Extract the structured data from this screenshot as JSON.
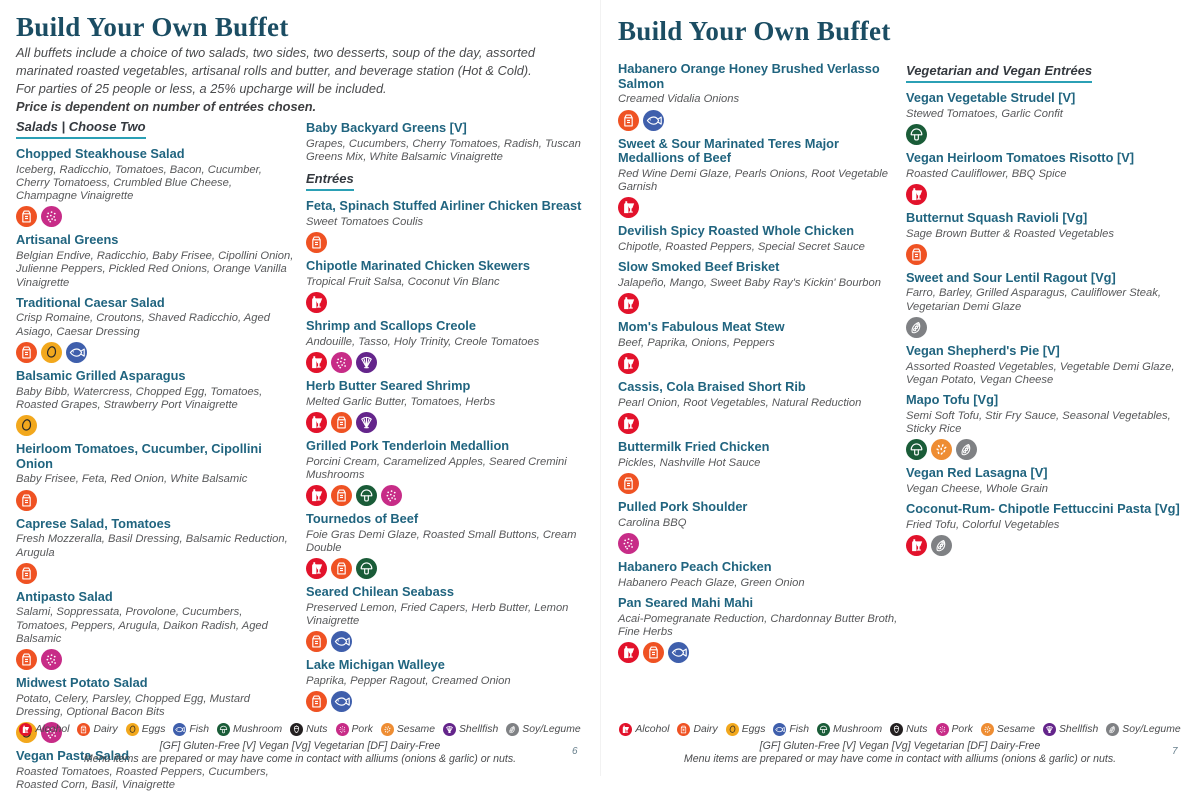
{
  "legend": {
    "items": [
      {
        "id": "alcohol",
        "label": "Alcohol",
        "color": "#e2122b"
      },
      {
        "id": "dairy",
        "label": "Dairy",
        "color": "#ef5223"
      },
      {
        "id": "eggs",
        "label": "Eggs",
        "color": "#f2a81d"
      },
      {
        "id": "fish",
        "label": "Fish",
        "color": "#3f5fac"
      },
      {
        "id": "mushroom",
        "label": "Mushroom",
        "color": "#1a5c38"
      },
      {
        "id": "nuts",
        "label": "Nuts",
        "color": "#242021"
      },
      {
        "id": "pork",
        "label": "Pork",
        "color": "#c72c87"
      },
      {
        "id": "sesame",
        "label": "Sesame",
        "color": "#ee8d33"
      },
      {
        "id": "shellfish",
        "label": "Shellfish",
        "color": "#64258b"
      },
      {
        "id": "soy",
        "label": "Soy/Legume",
        "color": "#7f8184"
      }
    ]
  },
  "footer": {
    "abbreviations": "[GF] Gluten-Free [V] Vegan [Vg] Vegetarian [DF] Dairy-Free",
    "disclaimer": "Menu items are prepared or may have come in contact with alliums (onions & garlic) or nuts."
  },
  "pages": [
    {
      "title": "Build Your Own Buffet",
      "page_number": "6",
      "intro": [
        "All buffets include a choice of two salads, two sides, two desserts, soup of the day, assorted marinated roasted vegetables, artisanal rolls and butter, and beverage station (Hot & Cold).",
        "For parties of 25 people or less, a 25% upcharge will be included.",
        "Price is dependent on number of entrées chosen."
      ],
      "columns": [
        {
          "blocks": [
            {
              "type": "header",
              "text": "Salads | Choose Two"
            },
            {
              "type": "item",
              "name": "Chopped Steakhouse Salad",
              "desc": "Iceberg, Radicchio, Tomatoes, Bacon, Cucumber, Cherry Tomatoess, Crumbled Blue Cheese, Champagne Vinaigrette",
              "allergens": [
                "dairy",
                "pork"
              ]
            },
            {
              "type": "item",
              "name": "Artisanal Greens",
              "desc": "Belgian Endive, Radicchio, Baby Frisee, Cipollini Onion, Julienne Peppers, Pickled Red Onions, Orange Vanilla Vinaigrette",
              "allergens": []
            },
            {
              "type": "item",
              "name": "Traditional Caesar Salad",
              "desc": "Crisp Romaine, Croutons, Shaved Radicchio, Aged Asiago, Caesar Dressing",
              "allergens": [
                "dairy",
                "eggs",
                "fish"
              ]
            },
            {
              "type": "item",
              "name": "Balsamic Grilled Asparagus",
              "desc": "Baby Bibb, Watercress, Chopped Egg, Tomatoes, Roasted Grapes, Strawberry Port Vinaigrette",
              "allergens": [
                "eggs"
              ]
            },
            {
              "type": "item",
              "name": "Heirloom Tomatoes, Cucumber, Cipollini Onion",
              "desc": "Baby Frisee, Feta, Red Onion, White Balsamic",
              "allergens": [
                "dairy"
              ]
            },
            {
              "type": "item",
              "name": "Caprese Salad, Tomatoes",
              "desc": "Fresh Mozzeralla, Basil Dressing, Balsamic Reduction, Arugula",
              "allergens": [
                "dairy"
              ]
            },
            {
              "type": "item",
              "name": "Antipasto Salad",
              "desc": "Salami, Soppressata, Provolone, Cucumbers, Tomatoes, Peppers, Arugula, Daikon Radish, Aged Balsamic",
              "allergens": [
                "dairy",
                "pork"
              ]
            },
            {
              "type": "item",
              "name": "Midwest Potato Salad",
              "desc": "Potato, Celery, Parsley, Chopped Egg, Mustard Dressing, Optional Bacon Bits",
              "allergens": [
                "eggs",
                "pork"
              ]
            },
            {
              "type": "item",
              "name": "Vegan Pasta Salad",
              "desc": "Roasted Tomatoes, Roasted Peppers, Cucumbers, Roasted Corn, Basil, Vinaigrette",
              "allergens": []
            }
          ]
        },
        {
          "blocks": [
            {
              "type": "item",
              "name": "Baby Backyard Greens [V]",
              "desc": "Grapes, Cucumbers, Cherry Tomatoes, Radish, Tuscan Greens Mix, White Balsamic Vinaigrette",
              "allergens": []
            },
            {
              "type": "header",
              "text": "Entrées"
            },
            {
              "type": "item",
              "name": "Feta, Spinach Stuffed Airliner Chicken Breast",
              "desc": "Sweet Tomatoes Coulis",
              "allergens": [
                "dairy"
              ]
            },
            {
              "type": "item",
              "name": "Chipotle Marinated Chicken Skewers",
              "desc": "Tropical Fruit Salsa, Coconut Vin Blanc",
              "allergens": [
                "alcohol"
              ]
            },
            {
              "type": "item",
              "name": "Shrimp and Scallops Creole",
              "desc": "Andouille, Tasso, Holy Trinity, Creole Tomatoes",
              "allergens": [
                "alcohol",
                "pork",
                "shellfish"
              ]
            },
            {
              "type": "item",
              "name": "Herb Butter Seared Shrimp",
              "desc": "Melted Garlic Butter, Tomatoes, Herbs",
              "allergens": [
                "alcohol",
                "dairy",
                "shellfish"
              ]
            },
            {
              "type": "item",
              "name": "Grilled Pork Tenderloin Medallion",
              "desc": "Porcini Cream, Caramelized Apples, Seared Cremini Mushrooms",
              "allergens": [
                "alcohol",
                "dairy",
                "mushroom",
                "pork"
              ]
            },
            {
              "type": "item",
              "name": "Tournedos of Beef",
              "desc": "Foie Gras Demi Glaze, Roasted Small Buttons, Cream Double",
              "allergens": [
                "alcohol",
                "dairy",
                "mushroom"
              ]
            },
            {
              "type": "item",
              "name": "Seared Chilean Seabass",
              "desc": "Preserved Lemon, Fried Capers, Herb Butter, Lemon Vinaigrette",
              "allergens": [
                "dairy",
                "fish"
              ]
            },
            {
              "type": "item",
              "name": "Lake Michigan Walleye",
              "desc": "Paprika, Pepper Ragout, Creamed Onion",
              "allergens": [
                "dairy",
                "fish"
              ]
            }
          ]
        }
      ]
    },
    {
      "title": "Build Your Own Buffet",
      "page_number": "7",
      "intro": [],
      "columns": [
        {
          "blocks": [
            {
              "type": "item",
              "name": "Habanero Orange Honey Brushed Verlasso Salmon",
              "desc": "Creamed Vidalia Onions",
              "allergens": [
                "dairy",
                "fish"
              ]
            },
            {
              "type": "item",
              "name": "Sweet & Sour Marinated Teres Major Medallions of Beef",
              "desc": "Red Wine Demi Glaze, Pearls Onions, Root Vegetable Garnish",
              "allergens": [
                "alcohol"
              ]
            },
            {
              "type": "item",
              "name": "Devilish Spicy Roasted Whole Chicken",
              "desc": "Chipotle, Roasted Peppers, Special Secret Sauce",
              "allergens": []
            },
            {
              "type": "item",
              "name": "Slow Smoked Beef Brisket",
              "desc": "Jalapeño, Mango, Sweet Baby Ray's Kickin' Bourbon",
              "allergens": [
                "alcohol"
              ]
            },
            {
              "type": "item",
              "name": "Mom's Fabulous Meat Stew",
              "desc": "Beef, Paprika, Onions, Peppers",
              "allergens": [
                "alcohol"
              ]
            },
            {
              "type": "item",
              "name": "Cassis, Cola Braised Short Rib",
              "desc": "Pearl Onion, Root Vegetables, Natural Reduction",
              "allergens": [
                "alcohol"
              ]
            },
            {
              "type": "item",
              "name": "Buttermilk Fried Chicken",
              "desc": "Pickles, Nashville Hot Sauce",
              "allergens": [
                "dairy"
              ]
            },
            {
              "type": "item",
              "name": "Pulled Pork Shoulder",
              "desc": "Carolina BBQ",
              "allergens": [
                "pork"
              ]
            },
            {
              "type": "item",
              "name": "Habanero Peach Chicken",
              "desc": "Habanero Peach Glaze, Green Onion",
              "allergens": []
            },
            {
              "type": "item",
              "name": "Pan Seared Mahi Mahi",
              "desc": "Acai-Pomegranate Reduction, Chardonnay Butter Broth, Fine Herbs",
              "allergens": [
                "alcohol",
                "dairy",
                "fish"
              ]
            }
          ]
        },
        {
          "blocks": [
            {
              "type": "header",
              "text": "Vegetarian and Vegan Entrées"
            },
            {
              "type": "item",
              "name": "Vegan Vegetable Strudel [V]",
              "desc": "Stewed Tomatoes, Garlic Confit",
              "allergens": [
                "mushroom"
              ]
            },
            {
              "type": "item",
              "name": "Vegan Heirloom Tomatoes Risotto [V]",
              "desc": "Roasted Cauliflower, BBQ Spice",
              "allergens": [
                "alcohol"
              ]
            },
            {
              "type": "item",
              "name": "Butternut Squash Ravioli [Vg]",
              "desc": "Sage Brown Butter & Roasted Vegetables",
              "allergens": [
                "dairy"
              ]
            },
            {
              "type": "item",
              "name": "Sweet and Sour Lentil Ragout [Vg]",
              "desc": "Farro, Barley, Grilled Asparagus, Cauliflower Steak, Vegetarian Demi Glaze",
              "allergens": [
                "soy"
              ]
            },
            {
              "type": "item",
              "name": "Vegan Shepherd's Pie [V]",
              "desc": "Assorted Roasted Vegetables, Vegetable Demi Glaze, Vegan Potato, Vegan Cheese",
              "allergens": []
            },
            {
              "type": "item",
              "name": "Mapo Tofu [Vg]",
              "desc": "Semi Soft Tofu, Stir Fry Sauce, Seasonal Vegetables, Sticky Rice",
              "allergens": [
                "mushroom",
                "sesame",
                "soy"
              ]
            },
            {
              "type": "item",
              "name": "Vegan Red Lasagna [V]",
              "desc": "Vegan Cheese, Whole Grain",
              "allergens": []
            },
            {
              "type": "item",
              "name": "Coconut-Rum- Chipotle Fettuccini Pasta [Vg]",
              "desc": "Fried Tofu, Colorful Vegetables",
              "allergens": [
                "alcohol",
                "soy"
              ]
            }
          ]
        }
      ]
    }
  ]
}
